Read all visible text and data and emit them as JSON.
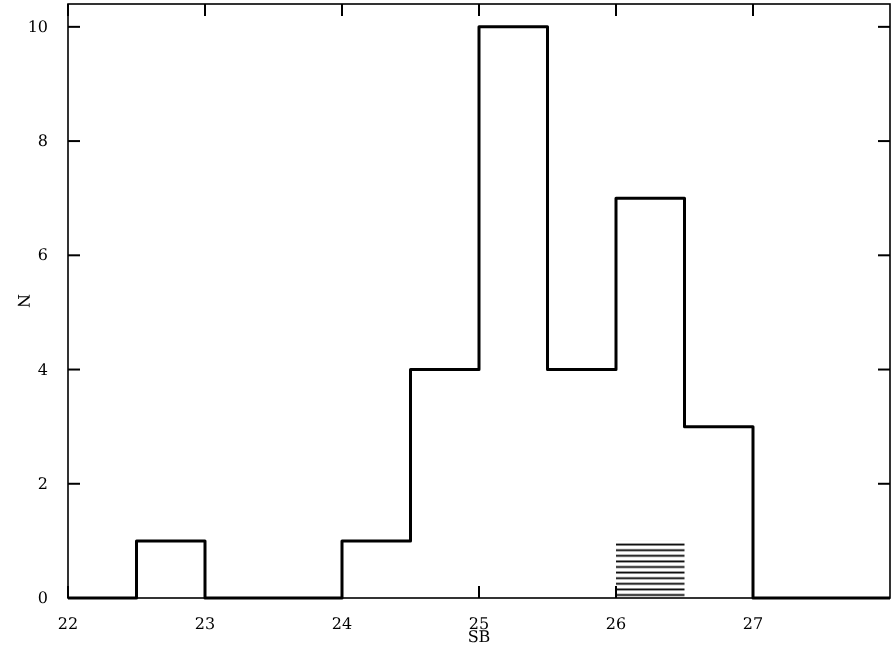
{
  "chart_data": {
    "type": "histogram",
    "xlabel": "SB",
    "ylabel": "N",
    "bins": [
      22,
      22.5,
      23,
      23.5,
      24,
      24.5,
      25,
      25.5,
      26,
      26.5,
      27,
      27.5,
      28
    ],
    "series": [
      {
        "color": "#000000",
        "values": [
          0,
          1,
          0,
          0,
          1,
          4,
          10,
          4,
          7,
          3,
          0,
          0
        ]
      },
      {
        "color": "#000000",
        "values": [
          0,
          0,
          0,
          0,
          0,
          0,
          0,
          0,
          1,
          0,
          0,
          0
        ]
      }
    ],
    "xlim": [
      22,
      28
    ],
    "ylim": [
      0,
      10.4
    ],
    "xticks": [
      22,
      23,
      24,
      25,
      26,
      27
    ],
    "yticks": [
      0,
      2,
      4,
      6,
      8,
      10
    ],
    "grid": false
  }
}
